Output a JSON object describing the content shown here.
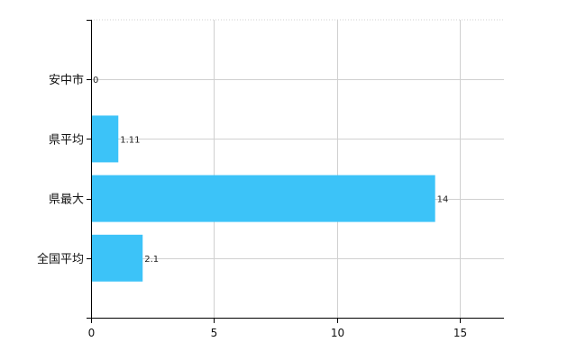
{
  "chart_data": {
    "type": "bar",
    "orientation": "horizontal",
    "categories": [
      "安中市",
      "県平均",
      "県最大",
      "全国平均"
    ],
    "values": [
      0,
      1.11,
      14,
      2.1
    ],
    "data_labels": [
      "0",
      "1.11",
      "14",
      "2.1"
    ],
    "xlim": [
      0,
      16.8
    ],
    "xticks": [
      0,
      5,
      10,
      15
    ],
    "title": "",
    "xlabel": "",
    "ylabel": "",
    "grid": true,
    "bar_color": "#3cc3f8",
    "grid_color": "#d0d0d0",
    "axis_color": "#000000"
  }
}
